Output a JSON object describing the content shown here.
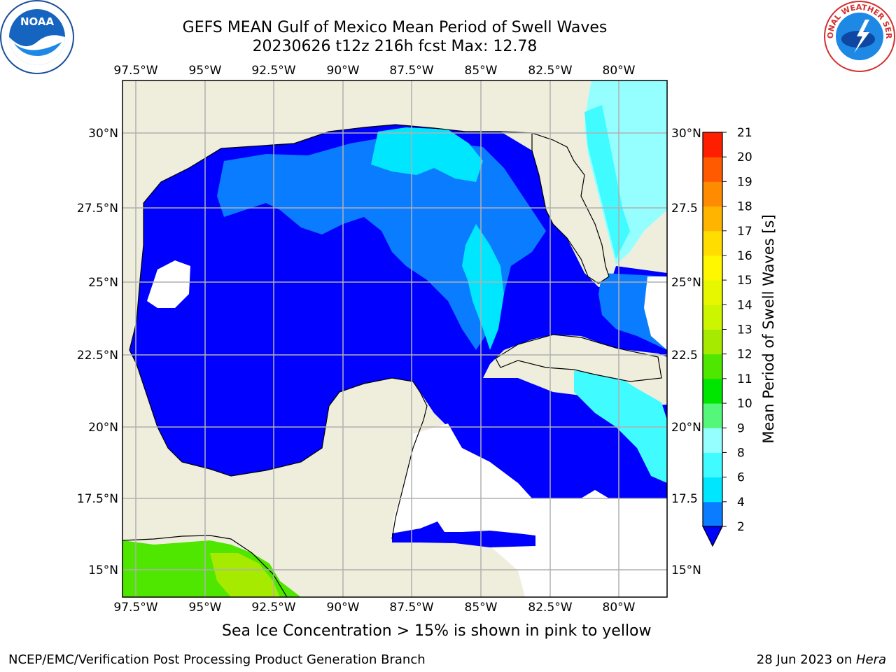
{
  "title": {
    "line1": "GEFS MEAN Gulf of Mexico Mean Period of Swell Waves",
    "line2": "20230626 t12z 216h fcst   Max: 12.78"
  },
  "map": {
    "lon_labels": [
      "97.5°W",
      "95°W",
      "92.5°W",
      "90°W",
      "87.5°W",
      "85°W",
      "82.5°W",
      "80°W"
    ],
    "lat_labels_left": [
      "30°N",
      "27.5°N",
      "25°N",
      "22.5°N",
      "20°N",
      "17.5°N",
      "15°N"
    ],
    "lat_labels_right": [
      "30°N",
      "27.5",
      "25°N",
      "22.5",
      "20°N",
      "17.5",
      "15°N"
    ]
  },
  "colorbar": {
    "label": "Mean Period of Swell Waves [s]",
    "ticks": [
      "2",
      "4",
      "6",
      "8",
      "9",
      "10",
      "11",
      "12",
      "13",
      "14",
      "15",
      "16",
      "17",
      "18",
      "19",
      "20",
      "21"
    ],
    "colors": [
      "#0a7cff",
      "#00e6ff",
      "#40fbff",
      "#95ffff",
      "#55f77b",
      "#00e600",
      "#4fe600",
      "#a6ea00",
      "#ccf500",
      "#e6f700",
      "#fff700",
      "#ffdd00",
      "#ffb400",
      "#ff8c00",
      "#ff5a00",
      "#ff1e00"
    ],
    "extend_color": "#0000ff"
  },
  "note": "Sea Ice Concentration > 15% is shown in pink to yellow",
  "footer": {
    "left": "NCEP/EMC/Verification Post Processing Product Generation Branch",
    "right_prefix": "28 Jun 2023 on ",
    "right_machine": "Hera"
  },
  "logos": {
    "left": "noaa-logo",
    "right": "nws-logo"
  }
}
